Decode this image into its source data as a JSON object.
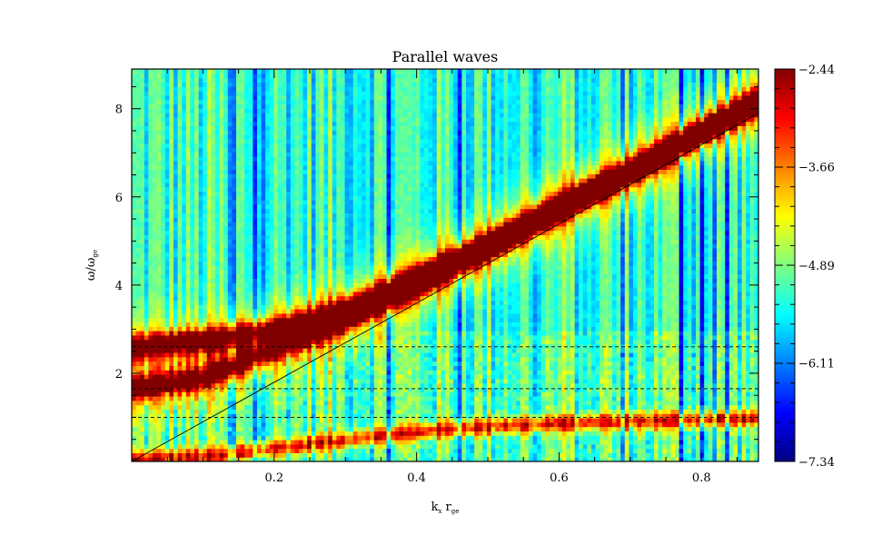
{
  "chart_data": {
    "type": "heatmap",
    "title": "Parallel waves",
    "xlabel": {
      "main": "k",
      "sub1": "x",
      "mid": " r",
      "sub2": "ge"
    },
    "ylabel": {
      "main": "ω/ω",
      "sub": "ge"
    },
    "xlim": [
      0.0,
      0.88
    ],
    "ylim": [
      0.0,
      8.9
    ],
    "x_ticks": [
      {
        "value": 0.2,
        "label": "0.2"
      },
      {
        "value": 0.4,
        "label": "0.4"
      },
      {
        "value": 0.6,
        "label": "0.6"
      },
      {
        "value": 0.8,
        "label": "0.8"
      }
    ],
    "y_ticks": [
      {
        "value": 2,
        "label": "2"
      },
      {
        "value": 4,
        "label": "4"
      },
      {
        "value": 6,
        "label": "6"
      },
      {
        "value": 8,
        "label": "8"
      }
    ],
    "colorbar": {
      "colormap": "jet",
      "min": -7.34,
      "max": -2.44,
      "ticks": [
        {
          "value": -2.44,
          "label": "−2.44"
        },
        {
          "value": -3.66,
          "label": "−3.66"
        },
        {
          "value": -4.89,
          "label": "−4.89"
        },
        {
          "value": -6.11,
          "label": "−6.11"
        },
        {
          "value": -7.34,
          "label": "−7.34"
        }
      ]
    },
    "reference_lines": {
      "dispersion_line": {
        "x": [
          0.0,
          0.88
        ],
        "y": [
          0.0,
          7.9
        ]
      },
      "dashed_horizontal": [
        2.6,
        1.65,
        1.0
      ]
    },
    "branches": [
      {
        "points": [
          [
            0.0,
            2.6
          ],
          [
            0.1,
            2.75
          ],
          [
            0.2,
            3.0
          ],
          [
            0.3,
            3.45
          ],
          [
            0.4,
            4.2
          ],
          [
            0.5,
            4.95
          ],
          [
            0.6,
            5.8
          ],
          [
            0.7,
            6.6
          ],
          [
            0.8,
            7.5
          ],
          [
            0.88,
            8.2
          ]
        ]
      },
      {
        "points": [
          [
            0.0,
            1.65
          ],
          [
            0.1,
            1.9
          ],
          [
            0.2,
            2.55
          ],
          [
            0.3,
            3.2
          ],
          [
            0.4,
            3.95
          ],
          [
            0.5,
            4.8
          ],
          [
            0.6,
            5.7
          ],
          [
            0.7,
            6.55
          ],
          [
            0.8,
            7.45
          ],
          [
            0.88,
            8.15
          ]
        ]
      },
      {
        "points": [
          [
            0.02,
            0.05
          ],
          [
            0.1,
            0.12
          ],
          [
            0.2,
            0.3
          ],
          [
            0.3,
            0.5
          ],
          [
            0.4,
            0.68
          ],
          [
            0.5,
            0.8
          ],
          [
            0.6,
            0.87
          ],
          [
            0.7,
            0.92
          ],
          [
            0.8,
            0.96
          ],
          [
            0.88,
            0.98
          ]
        ]
      }
    ]
  }
}
